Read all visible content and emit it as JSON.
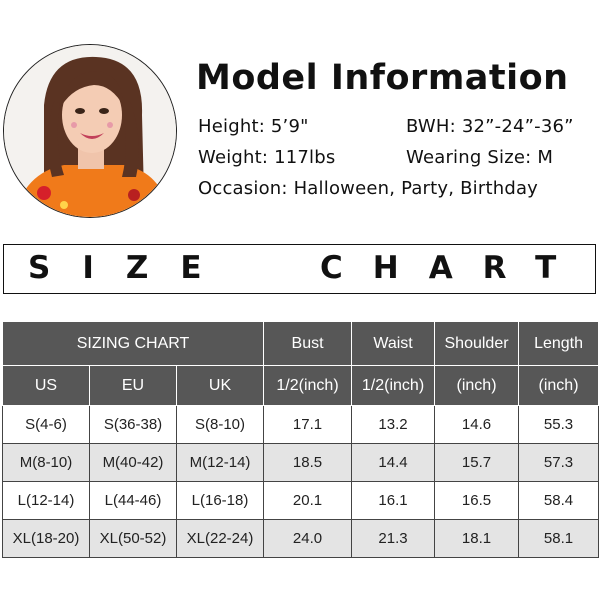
{
  "model": {
    "title": "Model Information",
    "height": "Height: 5’9\"",
    "bwh": "BWH: 32”-24”-36”",
    "weight": "Weight: 117lbs",
    "wearing_size": "Wearing Size: M",
    "occasion": "Occasion: Halloween, Party, Birthday"
  },
  "banner": {
    "word1": "SIZE",
    "word2": "CHART"
  },
  "table": {
    "group_header": "SIZING CHART",
    "measure_headers": [
      "Bust",
      "Waist",
      "Shoulder",
      "Length"
    ],
    "region_headers": [
      "US",
      "EU",
      "UK"
    ],
    "unit_headers": [
      "1/2(inch)",
      "1/2(inch)",
      "(inch)",
      "(inch)"
    ],
    "rows": [
      [
        "S(4-6)",
        "S(36-38)",
        "S(8-10)",
        "17.1",
        "13.2",
        "14.6",
        "55.3"
      ],
      [
        "M(8-10)",
        "M(40-42)",
        "M(12-14)",
        "18.5",
        "14.4",
        "15.7",
        "57.3"
      ],
      [
        "L(12-14)",
        "L(44-46)",
        "L(16-18)",
        "20.1",
        "16.1",
        "16.5",
        "58.4"
      ],
      [
        "XL(18-20)",
        "XL(50-52)",
        "XL(22-24)",
        "24.0",
        "21.3",
        "18.1",
        "58.1"
      ]
    ]
  },
  "colors": {
    "header_bg": "#575757",
    "row_alt": "#e4e4e4",
    "outfit": "#f07a1a"
  }
}
